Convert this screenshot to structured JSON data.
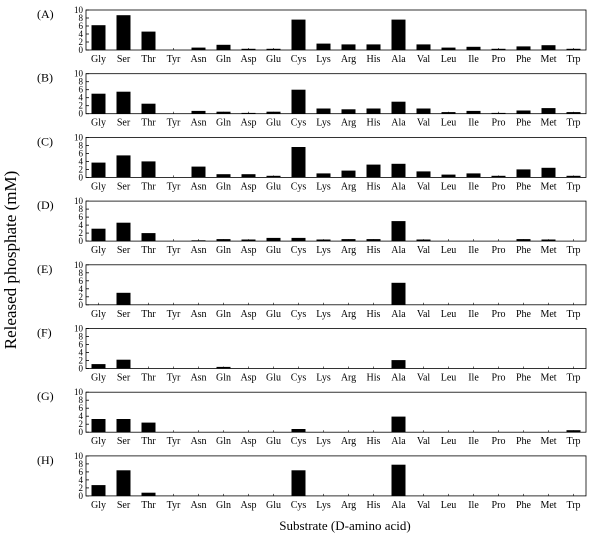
{
  "chart_data": {
    "type": "bar",
    "xlabel": "Substrate (D-amino acid)",
    "ylabel": "Released phosphate (mM)",
    "ylim": [
      0,
      10
    ],
    "yticks": [
      0,
      2,
      4,
      6,
      8,
      10
    ],
    "grid": false,
    "categories": [
      "Gly",
      "Ser",
      "Thr",
      "Tyr",
      "Asn",
      "Gln",
      "Asp",
      "Glu",
      "Cys",
      "Lys",
      "Arg",
      "His",
      "Ala",
      "Val",
      "Leu",
      "Ile",
      "Pro",
      "Phe",
      "Met",
      "Trp"
    ],
    "panels": [
      {
        "label": "(A)",
        "values": [
          6.2,
          8.7,
          4.6,
          0.0,
          0.6,
          1.3,
          0.3,
          0.3,
          7.6,
          1.6,
          1.4,
          1.4,
          7.6,
          1.4,
          0.6,
          0.8,
          0.3,
          0.9,
          1.2,
          0.3
        ]
      },
      {
        "label": "(B)",
        "values": [
          5.0,
          5.5,
          2.5,
          0.0,
          0.7,
          0.5,
          0.2,
          0.5,
          6.0,
          1.3,
          1.1,
          1.3,
          3.0,
          1.3,
          0.4,
          0.7,
          0.2,
          0.8,
          1.4,
          0.4
        ]
      },
      {
        "label": "(C)",
        "values": [
          3.7,
          5.5,
          4.0,
          0.0,
          2.7,
          0.8,
          0.8,
          0.4,
          7.6,
          1.0,
          1.7,
          3.2,
          3.4,
          1.5,
          0.7,
          1.0,
          0.4,
          2.0,
          2.4,
          0.4
        ]
      },
      {
        "label": "(D)",
        "values": [
          3.1,
          4.6,
          2.0,
          0.0,
          0.2,
          0.5,
          0.4,
          0.8,
          0.8,
          0.4,
          0.5,
          0.5,
          5.0,
          0.4,
          0.0,
          0.0,
          0.0,
          0.5,
          0.4,
          0.0
        ]
      },
      {
        "label": "(E)",
        "values": [
          0.0,
          3.0,
          0.0,
          0.0,
          0.0,
          0.0,
          0.0,
          0.0,
          0.0,
          0.0,
          0.0,
          0.0,
          5.5,
          0.0,
          0.0,
          0.0,
          0.0,
          0.0,
          0.0,
          0.0
        ]
      },
      {
        "label": "(F)",
        "values": [
          1.1,
          2.2,
          0.0,
          0.0,
          0.0,
          0.4,
          0.0,
          0.0,
          0.0,
          0.0,
          0.0,
          0.0,
          2.1,
          0.0,
          0.0,
          0.0,
          0.0,
          0.0,
          0.0,
          0.0
        ]
      },
      {
        "label": "(G)",
        "values": [
          3.3,
          3.3,
          2.4,
          0.0,
          0.0,
          0.0,
          0.0,
          0.0,
          0.8,
          0.0,
          0.0,
          0.0,
          3.9,
          0.0,
          0.0,
          0.0,
          0.0,
          0.0,
          0.0,
          0.5
        ]
      },
      {
        "label": "(H)",
        "values": [
          2.7,
          6.4,
          0.8,
          0.0,
          0.0,
          0.0,
          0.0,
          0.0,
          6.4,
          0.0,
          0.0,
          0.0,
          7.8,
          0.0,
          0.0,
          0.0,
          0.0,
          0.0,
          0.0,
          0.0
        ]
      }
    ]
  }
}
